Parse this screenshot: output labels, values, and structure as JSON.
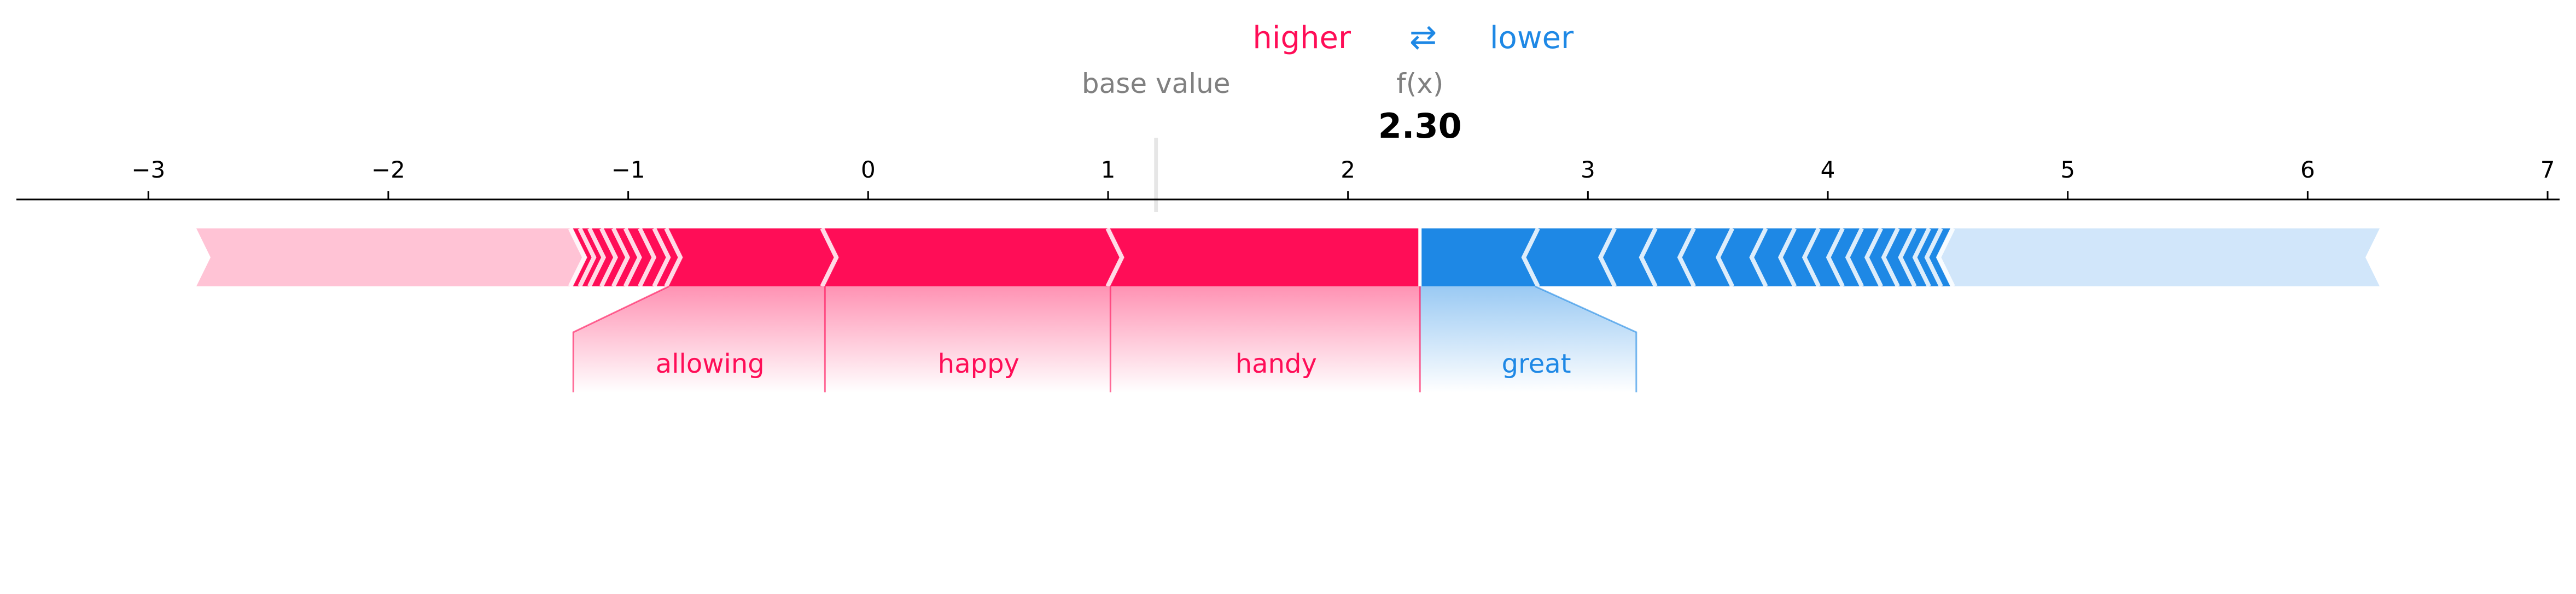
{
  "chart_data": {
    "type": "force",
    "legend": {
      "higher_label": "higher",
      "arrow_symbol": "⇄",
      "lower_label": "lower"
    },
    "base_value_label": "base value",
    "output_label": "f(x)",
    "output_value": 2.3,
    "output_value_text": "2.30",
    "base_value": 1.2,
    "xlim": [
      -3.55,
      7.05
    ],
    "ticks": [
      -3,
      -2,
      -1,
      0,
      1,
      2,
      3,
      4,
      5,
      6,
      7
    ],
    "tick_labels": [
      "−3",
      "−2",
      "−1",
      "0",
      "1",
      "2",
      "3",
      "4",
      "5",
      "6",
      "7"
    ],
    "positive_start": -2.8,
    "negative_end": 6.3,
    "positive_features": [
      {
        "label": "handy",
        "start": 1.01,
        "end": 2.3
      },
      {
        "label": "happy",
        "start": -0.18,
        "end": 1.01
      },
      {
        "label": "allowing",
        "start": -0.83,
        "end": -0.18
      }
    ],
    "negative_features": [
      {
        "label": "great",
        "start": 2.3,
        "end": 2.78
      }
    ],
    "positive_minor_separators": [
      -0.88,
      -0.94,
      -1.0,
      -1.05,
      -1.1,
      -1.15,
      -1.19,
      -1.23
    ],
    "negative_minor_separators": [
      3.1,
      3.27,
      3.43,
      3.59,
      3.73,
      3.85,
      3.95,
      4.05,
      4.13,
      4.21,
      4.28,
      4.35,
      4.41,
      4.46,
      4.51
    ],
    "colors": {
      "positive": "#ff0d57",
      "positive_light": "#ffc3d5",
      "negative": "#1e88e5",
      "negative_light": "#d1e6fa",
      "axis": "#000000",
      "muted_text": "#808080",
      "base_line": "#e6e6e6"
    }
  }
}
